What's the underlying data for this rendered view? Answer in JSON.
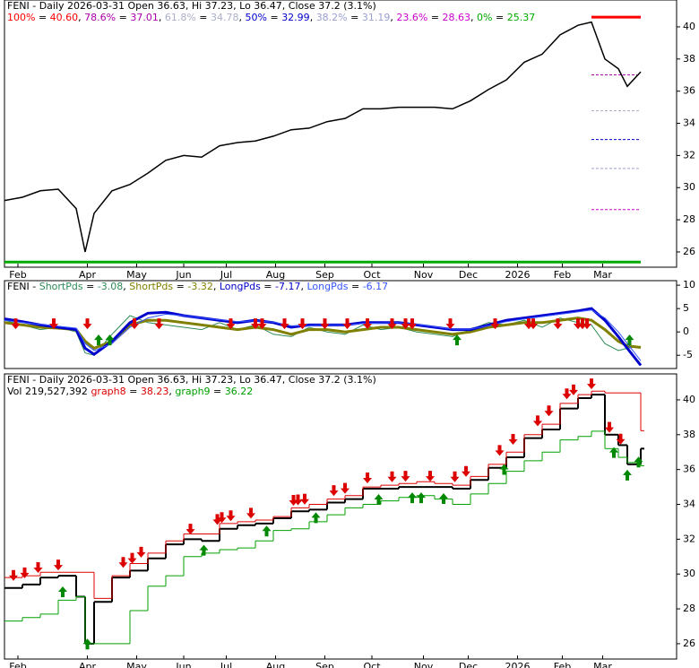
{
  "chart_data": [
    {
      "type": "line",
      "title": "FENI - Daily 2026-03-31 Open 36.63, Hi 37.23, Lo 36.47, Close 37.2 (3.1%)",
      "x": [
        0,
        8,
        16,
        24,
        32,
        36,
        40,
        48,
        56,
        64,
        72,
        80,
        88,
        96,
        104,
        112,
        120,
        128,
        136,
        144,
        152,
        160,
        168,
        176,
        184,
        192,
        200,
        208,
        216,
        224,
        232,
        240,
        248,
        256,
        262,
        268,
        274,
        278,
        284
      ],
      "xlim": [
        0,
        300
      ],
      "xticks": [
        {
          "value": 6,
          "label": "Feb"
        },
        {
          "value": 37,
          "label": "Apr"
        },
        {
          "value": 59,
          "label": "May"
        },
        {
          "value": 80,
          "label": "Jun"
        },
        {
          "value": 99,
          "label": "Jul"
        },
        {
          "value": 121,
          "label": "Aug"
        },
        {
          "value": 143,
          "label": "Sep"
        },
        {
          "value": 164,
          "label": "Oct"
        },
        {
          "value": 187,
          "label": "Nov"
        },
        {
          "value": 207,
          "label": "Dec"
        },
        {
          "value": 229,
          "label": "2026"
        },
        {
          "value": 249,
          "label": "Feb"
        },
        {
          "value": 267,
          "label": "Mar"
        }
      ],
      "ylim": [
        25.05,
        41.67
      ],
      "yticks": [
        26,
        28,
        30,
        32,
        34,
        36,
        38,
        40
      ],
      "series": [
        {
          "color": "#000000",
          "values": [
            29.2,
            29.4,
            29.8,
            29.9,
            28.7,
            26.0,
            28.4,
            29.8,
            30.2,
            30.9,
            31.7,
            32.0,
            31.9,
            32.6,
            32.8,
            32.9,
            33.2,
            33.6,
            33.7,
            34.1,
            34.3,
            34.9,
            34.9,
            35.0,
            35.0,
            35.0,
            34.9,
            35.4,
            36.1,
            36.7,
            37.8,
            38.3,
            39.5,
            40.1,
            40.3,
            38.0,
            37.4,
            36.3,
            37.2
          ]
        }
      ],
      "fib_levels": [
        {
          "name": "100%",
          "value": 40.6,
          "value_label": "40.60",
          "color": "#ff0000"
        },
        {
          "name": "78.6%",
          "value": 37.01,
          "color": "#aa00aa"
        },
        {
          "name": "61.8%",
          "value": 34.78,
          "color": "#aab0c8"
        },
        {
          "name": "50%",
          "value": 32.99,
          "color": "#0000cc"
        },
        {
          "name": "38.2%",
          "value": 31.19,
          "color": "#9aa0d0"
        },
        {
          "name": "23.6%",
          "value": 28.63,
          "color": "#cc00cc"
        },
        {
          "name": "0%",
          "value": 25.37,
          "color": "#00aa00"
        }
      ]
    },
    {
      "type": "line",
      "title": "FENI -",
      "x": [
        0,
        8,
        16,
        24,
        32,
        36,
        40,
        48,
        56,
        64,
        72,
        80,
        88,
        96,
        104,
        112,
        120,
        128,
        136,
        144,
        152,
        160,
        168,
        176,
        184,
        192,
        200,
        208,
        216,
        224,
        232,
        240,
        248,
        256,
        262,
        268,
        274,
        278,
        284
      ],
      "xlim": [
        0,
        300
      ],
      "ylim": [
        -7.84,
        10.98
      ],
      "yticks": [
        10,
        5,
        0,
        -5
      ],
      "series": [
        {
          "name": "ShortPds",
          "color": "#2e8b57",
          "width": 1,
          "values": [
            2.5,
            1.5,
            0.5,
            1.0,
            0.0,
            -4.5,
            -5.0,
            -0.5,
            3.5,
            2.0,
            1.5,
            1.0,
            0.5,
            2.0,
            0.5,
            1.5,
            -0.5,
            -1.0,
            1.0,
            0.0,
            -0.5,
            1.5,
            0.5,
            1.0,
            0.0,
            -0.5,
            -1.0,
            0.5,
            2.0,
            1.5,
            2.5,
            1.0,
            3.0,
            2.0,
            1.5,
            -2.5,
            -4.0,
            -3.5,
            -3.08
          ]
        },
        {
          "name": "ShortPds",
          "color": "#808000",
          "width": 3,
          "values": [
            2.0,
            1.5,
            1.0,
            0.8,
            0.5,
            -2.0,
            -3.5,
            -2.0,
            1.5,
            2.5,
            2.5,
            2.0,
            1.5,
            1.0,
            0.5,
            1.0,
            0.5,
            -0.5,
            0.5,
            0.5,
            0.0,
            0.5,
            1.0,
            1.0,
            0.5,
            0.0,
            -0.5,
            0.0,
            1.0,
            1.5,
            2.0,
            2.0,
            2.5,
            3.0,
            2.5,
            0.5,
            -2.0,
            -3.0,
            -3.32
          ]
        },
        {
          "name": "LongPds",
          "color": "#0000cc",
          "width": 3,
          "values": [
            2.8,
            2.2,
            1.5,
            1.0,
            0.5,
            -3.5,
            -4.8,
            -2.0,
            2.0,
            4.0,
            4.2,
            3.5,
            3.0,
            2.5,
            2.0,
            2.5,
            2.0,
            1.0,
            1.5,
            1.5,
            1.5,
            2.0,
            2.0,
            2.0,
            1.5,
            1.0,
            0.5,
            0.5,
            1.5,
            2.5,
            3.0,
            3.5,
            4.0,
            4.5,
            5.0,
            2.5,
            -1.0,
            -3.5,
            -7.17
          ]
        },
        {
          "name": "LongPds",
          "color": "#3355ff",
          "width": 1,
          "values": [
            2.5,
            2.0,
            1.6,
            1.2,
            0.8,
            -2.5,
            -4.0,
            -2.5,
            1.0,
            3.0,
            3.8,
            3.5,
            3.0,
            2.6,
            2.2,
            2.4,
            2.1,
            1.3,
            1.4,
            1.5,
            1.5,
            1.8,
            1.9,
            2.0,
            1.6,
            1.1,
            0.6,
            0.6,
            1.3,
            2.2,
            2.8,
            3.3,
            3.8,
            4.3,
            4.7,
            3.0,
            0.0,
            -2.5,
            -6.17
          ]
        }
      ],
      "sell_signals": [
        5,
        22,
        37,
        58,
        69,
        101,
        112,
        115,
        125,
        133,
        143,
        153,
        162,
        173,
        179,
        182,
        199,
        219,
        234,
        236,
        247,
        256,
        258,
        260
      ],
      "buy_signals": [
        42,
        47,
        202,
        279
      ]
    },
    {
      "type": "line",
      "title": "FENI - Daily 2026-03-31 Open 36.63, Hi 37.23, Lo 36.47, Close 37.2 (3.1%)",
      "subtitle": "Vol 219,527,392",
      "x": [
        0,
        8,
        16,
        24,
        32,
        36,
        40,
        48,
        56,
        64,
        72,
        80,
        88,
        96,
        104,
        112,
        120,
        128,
        136,
        144,
        152,
        160,
        168,
        176,
        184,
        192,
        200,
        208,
        216,
        224,
        232,
        240,
        248,
        256,
        262,
        268,
        274,
        278,
        284
      ],
      "xlim": [
        0,
        300
      ],
      "xticks": [
        {
          "value": 6,
          "label": "Feb"
        },
        {
          "value": 37,
          "label": "Apr"
        },
        {
          "value": 59,
          "label": "May"
        },
        {
          "value": 80,
          "label": "Jun"
        },
        {
          "value": 99,
          "label": "Jul"
        },
        {
          "value": 121,
          "label": "Aug"
        },
        {
          "value": 143,
          "label": "Sep"
        },
        {
          "value": 164,
          "label": "Oct"
        },
        {
          "value": 187,
          "label": "Nov"
        },
        {
          "value": 207,
          "label": "Dec"
        },
        {
          "value": 229,
          "label": "2026"
        },
        {
          "value": 249,
          "label": "Feb"
        },
        {
          "value": 267,
          "label": "Mar"
        }
      ],
      "ylim": [
        25.12,
        41.49
      ],
      "yticks": [
        26,
        28,
        30,
        32,
        34,
        36,
        38,
        40
      ],
      "step": true,
      "series": [
        {
          "color": "#000000",
          "width": 2,
          "values": [
            29.2,
            29.4,
            29.8,
            29.9,
            28.7,
            26.0,
            28.4,
            29.8,
            30.2,
            30.9,
            31.7,
            32.0,
            31.9,
            32.6,
            32.8,
            32.9,
            33.2,
            33.6,
            33.7,
            34.1,
            34.3,
            34.9,
            34.9,
            35.0,
            35.0,
            35.0,
            34.9,
            35.4,
            36.1,
            36.7,
            37.8,
            38.3,
            39.5,
            40.1,
            40.3,
            38.0,
            37.4,
            36.3,
            37.2
          ]
        },
        {
          "name": "graph8",
          "color": "#dd0000",
          "width": 1,
          "values": [
            29.8,
            29.9,
            30.1,
            30.1,
            30.1,
            30.1,
            28.6,
            29.9,
            30.6,
            31.2,
            31.9,
            32.3,
            32.3,
            32.9,
            33.0,
            33.1,
            33.3,
            33.8,
            34.0,
            34.3,
            34.5,
            35.0,
            35.1,
            35.2,
            35.3,
            35.2,
            35.1,
            35.6,
            36.3,
            37.0,
            38.0,
            38.6,
            39.8,
            40.3,
            40.5,
            40.4,
            40.4,
            40.4,
            38.23
          ]
        },
        {
          "name": "graph9",
          "color": "#00a000",
          "width": 1,
          "values": [
            27.3,
            27.5,
            27.7,
            28.5,
            28.7,
            26.0,
            26.0,
            26.0,
            27.9,
            29.3,
            29.9,
            31.0,
            31.2,
            31.4,
            31.5,
            31.9,
            32.5,
            32.6,
            33.0,
            33.4,
            33.8,
            34.0,
            34.2,
            34.4,
            34.5,
            34.3,
            34.0,
            34.6,
            35.2,
            35.9,
            36.5,
            37.0,
            37.7,
            37.9,
            38.2,
            37.2,
            36.7,
            36.4,
            36.22
          ]
        }
      ],
      "sell_signals": [
        4,
        9,
        15,
        24,
        53,
        57,
        61,
        83,
        95,
        97,
        101,
        110,
        129,
        131,
        134,
        147,
        152,
        162,
        173,
        179,
        190,
        201,
        206,
        221,
        227,
        238,
        243,
        251,
        254,
        262,
        270,
        275
      ],
      "buy_signals": [
        26,
        37,
        89,
        117,
        139,
        167,
        182,
        186,
        196,
        223,
        272,
        278,
        283
      ]
    }
  ]
}
